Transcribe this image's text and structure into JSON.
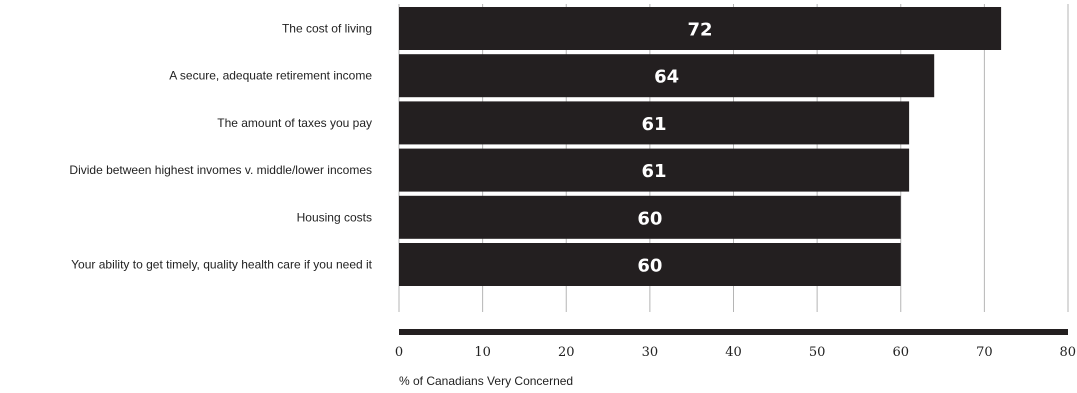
{
  "chart_data": {
    "type": "bar",
    "orientation": "horizontal",
    "categories": [
      "The cost of living",
      "A secure, adequate retirement income",
      "The amount of taxes you pay",
      "Divide between highest invomes v. middle/lower incomes",
      "Housing costs",
      "Your ability to get timely, quality health care if you need it"
    ],
    "values": [
      72,
      64,
      61,
      61,
      60,
      60
    ],
    "value_labels": [
      "72",
      "64",
      "61",
      "61",
      "60",
      "60"
    ],
    "xlabel": "% of Canadians Very Concerned",
    "xlim": [
      0,
      80
    ],
    "ticks": [
      0,
      10,
      20,
      30,
      40,
      50,
      60,
      70,
      80
    ],
    "tick_labels": [
      "0",
      "10",
      "20",
      "30",
      "40",
      "50",
      "60",
      "70",
      "80"
    ],
    "grid": true,
    "bar_color": "#231f20",
    "value_label_color": "#ffffff"
  }
}
